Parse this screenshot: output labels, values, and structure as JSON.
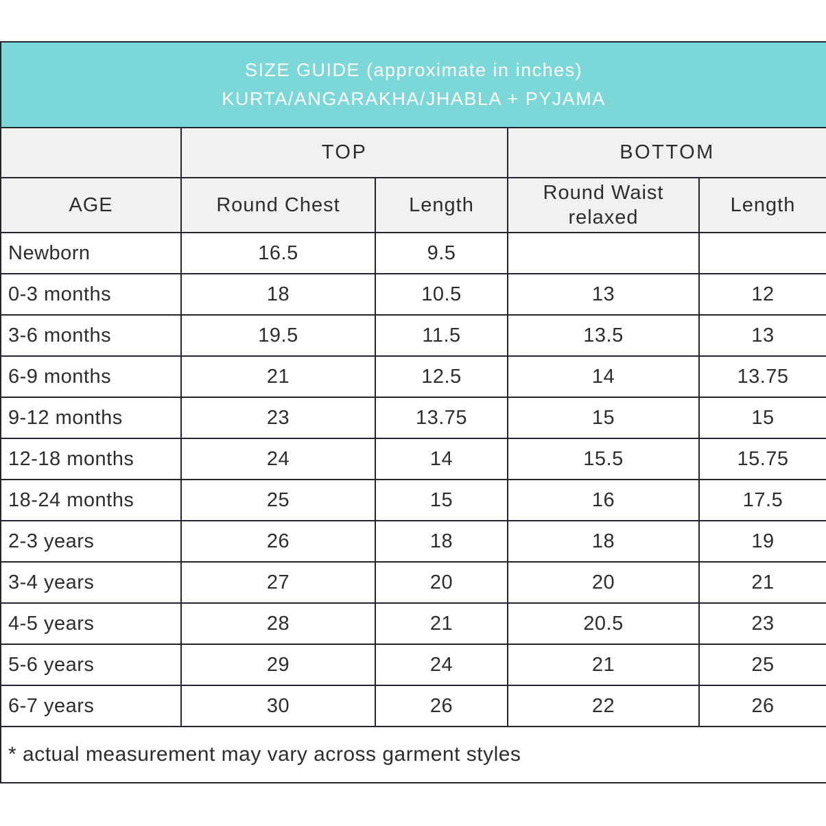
{
  "accent_color": "#7bd7d8",
  "border_color": "#25252e",
  "header_bg_color": "#f1f1f1",
  "title": {
    "line1": "SIZE GUIDE (approximate in inches)",
    "line2": "KURTA/ANGARAKHA/JHABLA + PYJAMA"
  },
  "groups": {
    "top": "TOP",
    "bottom": "BOTTOM"
  },
  "columns": {
    "age": "AGE",
    "round_chest": "Round Chest",
    "top_length": "Length",
    "round_waist_line1": "Round Waist",
    "round_waist_line2": "relaxed",
    "bottom_length": "Length"
  },
  "table": {
    "rows": [
      [
        "Newborn",
        "16.5",
        "9.5",
        "",
        ""
      ],
      [
        "0-3 months",
        "18",
        "10.5",
        "13",
        "12"
      ],
      [
        "3-6 months",
        "19.5",
        "11.5",
        "13.5",
        "13"
      ],
      [
        "6-9 months",
        "21",
        "12.5",
        "14",
        "13.75"
      ],
      [
        "9-12 months",
        "23",
        "13.75",
        "15",
        "15"
      ],
      [
        "12-18 months",
        "24",
        "14",
        "15.5",
        "15.75"
      ],
      [
        "18-24 months",
        "25",
        "15",
        "16",
        "17.5"
      ],
      [
        "2-3 years",
        "26",
        "18",
        "18",
        "19"
      ],
      [
        "3-4 years",
        "27",
        "20",
        "20",
        "21"
      ],
      [
        "4-5 years",
        "28",
        "21",
        "20.5",
        "23"
      ],
      [
        "5-6 years",
        "29",
        "24",
        "21",
        "25"
      ],
      [
        "6-7 years",
        "30",
        "26",
        "22",
        "26"
      ]
    ]
  },
  "footnote": "* actual measurement may vary across garment styles"
}
